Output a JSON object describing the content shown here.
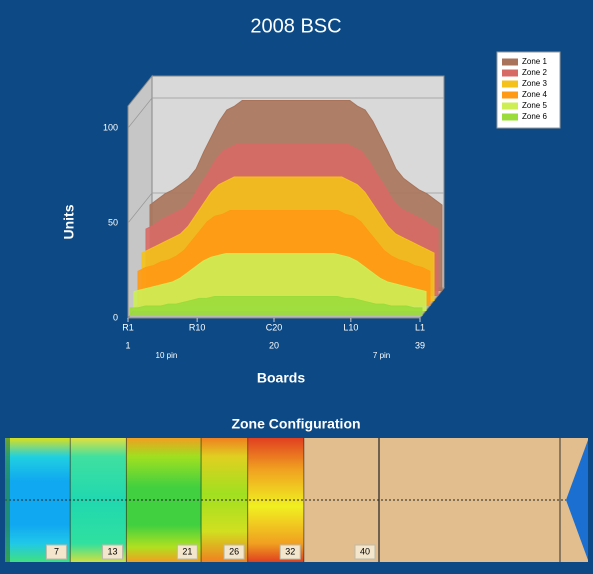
{
  "chart_data": {
    "type": "area",
    "title": "2008 BSC",
    "x_label": "Boards",
    "y_label": "Units",
    "x": [
      1,
      2,
      3,
      4,
      5,
      6,
      7,
      8,
      9,
      10,
      11,
      12,
      13,
      14,
      15,
      16,
      17,
      18,
      19,
      20,
      21,
      22,
      23,
      24,
      25,
      26,
      27,
      28,
      29,
      30,
      31,
      32,
      33,
      34,
      35,
      36,
      37,
      38,
      39
    ],
    "xlim": [
      1,
      39
    ],
    "xticks": [
      {
        "value": 1,
        "label": "R1"
      },
      {
        "value": 10,
        "label": "R10"
      },
      {
        "value": 20,
        "label": "C20"
      },
      {
        "value": 30,
        "label": "L10"
      },
      {
        "value": 39,
        "label": "L1"
      }
    ],
    "board_ticks": [
      1,
      20,
      39
    ],
    "pin_marks": [
      {
        "value": 6,
        "label": "10 pin"
      },
      {
        "value": 34,
        "label": "7 pin"
      }
    ],
    "ylim": [
      0,
      100
    ],
    "yticks": [
      0,
      50,
      100
    ],
    "grid": true,
    "legend": "upper right",
    "series": [
      {
        "name": "Zone 1",
        "color": "#a8735a",
        "values": [
          45,
          48,
          51,
          53,
          56,
          59,
          64,
          73,
          81,
          89,
          95,
          97,
          100,
          100,
          100,
          100,
          100,
          100,
          100,
          100,
          100,
          100,
          100,
          100,
          100,
          100,
          100,
          97,
          95,
          89,
          81,
          73,
          64,
          59,
          56,
          53,
          51,
          48,
          45
        ]
      },
      {
        "name": "Zone 2",
        "color": "#d86a66",
        "values": [
          35,
          37,
          40,
          42,
          44,
          46,
          51,
          58,
          64,
          71,
          76,
          78,
          80,
          80,
          80,
          80,
          80,
          80,
          80,
          80,
          80,
          80,
          80,
          80,
          80,
          80,
          80,
          78,
          76,
          71,
          64,
          58,
          51,
          46,
          44,
          42,
          40,
          37,
          35
        ]
      },
      {
        "name": "Zone 3",
        "color": "#f4c21a",
        "values": [
          25,
          27,
          29,
          31,
          33,
          35,
          39,
          45,
          51,
          57,
          61,
          63,
          65,
          65,
          65,
          65,
          65,
          65,
          65,
          65,
          65,
          65,
          65,
          65,
          65,
          65,
          65,
          63,
          61,
          57,
          51,
          45,
          39,
          35,
          33,
          31,
          29,
          27,
          25
        ]
      },
      {
        "name": "Zone 4",
        "color": "#ff9a14",
        "values": [
          18,
          20,
          21,
          23,
          24,
          26,
          29,
          34,
          39,
          44,
          47,
          48,
          50,
          50,
          50,
          50,
          50,
          50,
          50,
          50,
          50,
          50,
          50,
          50,
          50,
          50,
          50,
          48,
          47,
          44,
          39,
          34,
          29,
          26,
          24,
          23,
          21,
          20,
          18
        ]
      },
      {
        "name": "Zone 5",
        "color": "#cdee55",
        "values": [
          10,
          11,
          12,
          13,
          14,
          15,
          17,
          20,
          23,
          26,
          28,
          29,
          30,
          30,
          30,
          30,
          30,
          30,
          30,
          30,
          30,
          30,
          30,
          30,
          30,
          30,
          30,
          29,
          28,
          26,
          23,
          20,
          17,
          15,
          14,
          13,
          12,
          11,
          10
        ]
      },
      {
        "name": "Zone 6",
        "color": "#9bdc3b",
        "values": [
          4,
          4,
          5,
          5,
          5,
          6,
          6,
          7,
          8,
          9,
          9,
          10,
          10,
          10,
          10,
          10,
          10,
          10,
          10,
          10,
          10,
          10,
          10,
          10,
          10,
          10,
          10,
          10,
          9,
          9,
          8,
          7,
          6,
          6,
          5,
          5,
          5,
          4,
          4
        ]
      }
    ]
  },
  "zone_config": {
    "title": "Zone Configuration",
    "boundaries": [
      7,
      13,
      21,
      26,
      32,
      40
    ]
  }
}
